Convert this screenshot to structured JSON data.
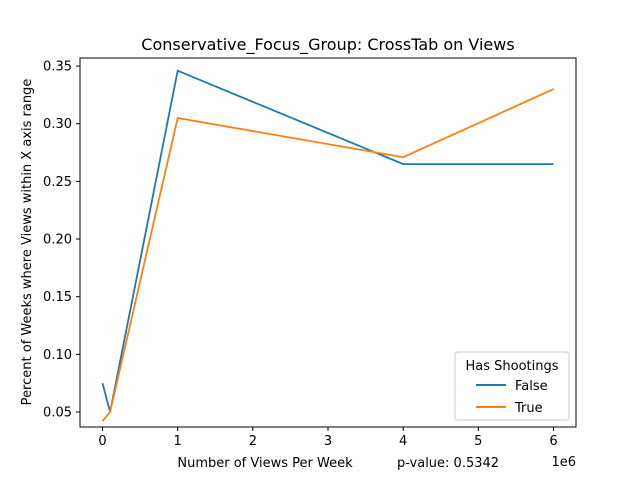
{
  "chart_data": {
    "type": "line",
    "title": "Conservative_Focus_Group: CrossTab on Views",
    "xlabel": "Number of Views Per Week",
    "ylabel": "Percent of Weeks where Views within X axis range",
    "annotation": "p-value: 0.5342",
    "x_offset_label": "1e6",
    "xlim": [
      -0.3,
      6.3
    ],
    "ylim": [
      0.037,
      0.357
    ],
    "x_ticks": [
      0,
      1,
      2,
      3,
      4,
      5,
      6
    ],
    "y_ticks": [
      0.05,
      0.1,
      0.15,
      0.2,
      0.25,
      0.3,
      0.35
    ],
    "x_tick_labels": [
      "0",
      "1",
      "2",
      "3",
      "4",
      "5",
      "6"
    ],
    "y_tick_labels": [
      "0.05",
      "0.10",
      "0.15",
      "0.20",
      "0.25",
      "0.30",
      "0.35"
    ],
    "grid": false,
    "legend": {
      "title": "Has Shootings",
      "placement": "lower-right"
    },
    "series": [
      {
        "name": "False",
        "color": "#1f77b4",
        "x": [
          0,
          0.1,
          1,
          4,
          6
        ],
        "y": [
          0.075,
          0.05,
          0.346,
          0.265,
          0.265
        ]
      },
      {
        "name": "True",
        "color": "#ff7f0e",
        "x": [
          0,
          0.1,
          1,
          4,
          6
        ],
        "y": [
          0.042,
          0.05,
          0.305,
          0.271,
          0.33
        ]
      }
    ]
  }
}
